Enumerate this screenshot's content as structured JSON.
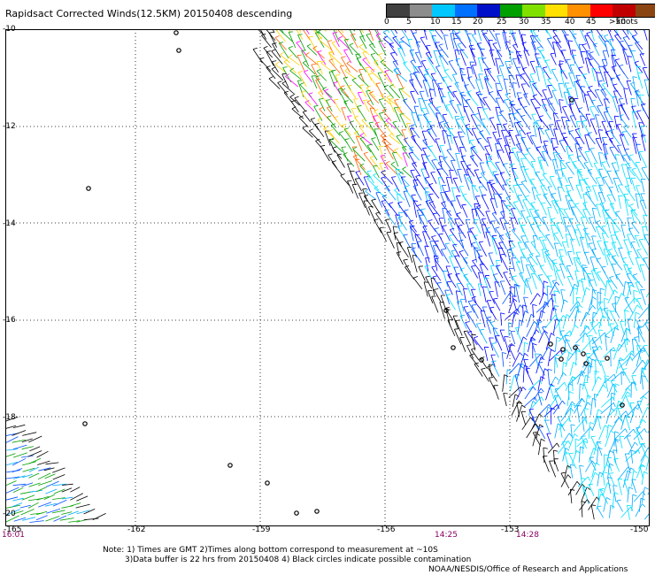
{
  "title": "Rapidsact Corrected Winds(12.5KM) 20150408 descending",
  "colorbar": {
    "colors": [
      "#404040",
      "#8c8c8c",
      "#00c8ff",
      "#0070ff",
      "#0010c8",
      "#00a000",
      "#80e000",
      "#ffe000",
      "#ff9000",
      "#ff0000",
      "#c00000",
      "#8b4513",
      "#ff00ff",
      "#a000ff",
      "#6a0080"
    ],
    "labels": [
      "0",
      "5",
      "10",
      "15",
      "20",
      "25",
      "30",
      "35",
      "40",
      "45",
      ">50"
    ],
    "units": "knots"
  },
  "lat_labels": [
    "-10",
    "-12",
    "-14",
    "-16",
    "-18",
    "-20"
  ],
  "lon_labels": [
    "-165",
    "-162",
    "-159",
    "-156",
    "-153",
    "-150"
  ],
  "times": [
    "16:01",
    "14:25",
    "14:28"
  ],
  "notes": [
    "Note: 1) Times are GMT 2)Times along bottom correspond to measurement at ~10S",
    "3)Data buffer is 22 hrs from 20150408 4) Black circles indicate possible contamination"
  ],
  "credit": "NOAA/NESDIS/Office of Research and Applications",
  "map": {
    "gridlines": "dotted",
    "swath_colors": [
      "#0000ff",
      "#0050ff",
      "#00aaff",
      "#00e0ff",
      "#80ffff",
      "#00a000",
      "#ffd000",
      "#ff6000",
      "#ff00ff",
      "#000000"
    ]
  }
}
